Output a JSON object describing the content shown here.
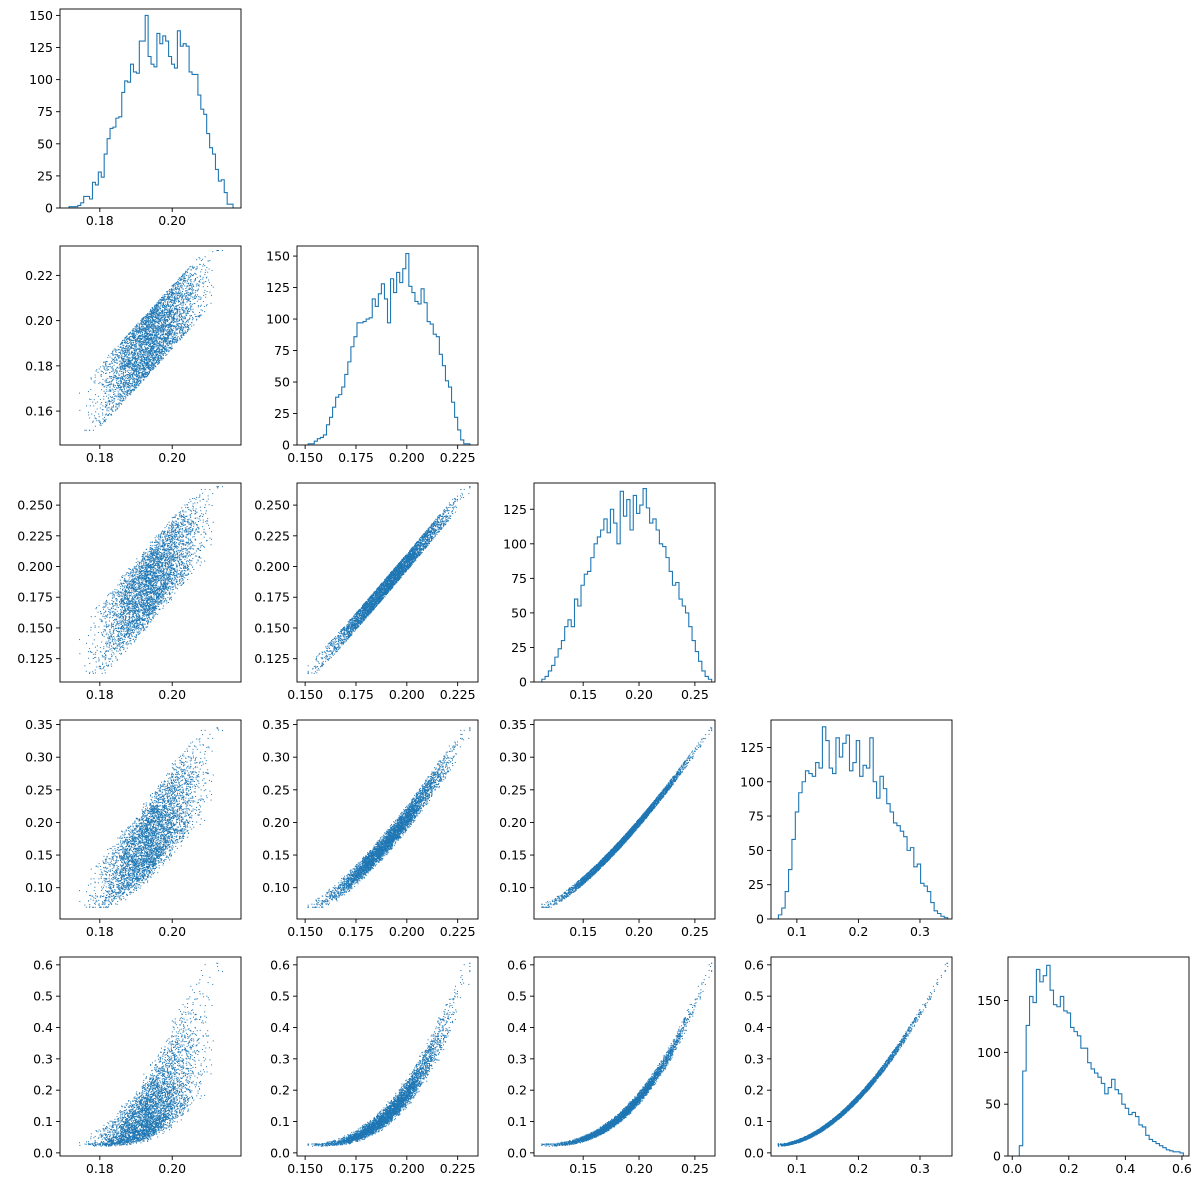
{
  "figure": {
    "layout": "corner-plot",
    "rows": 5,
    "cols": 5,
    "color": "#1f77b4",
    "axis_color": "#000000"
  },
  "chart_data": [
    {
      "panel": "row1-col1",
      "type": "histogram",
      "histtype": "step",
      "xlim": [
        0.169,
        0.219
      ],
      "ylim": [
        0,
        155
      ],
      "xticks": [
        0.18,
        0.2
      ],
      "xtick_labels": [
        "0.18",
        "0.20"
      ],
      "yticks": [
        0,
        25,
        50,
        75,
        100,
        125,
        150
      ],
      "ytick_labels": [
        "0",
        "25",
        "50",
        "75",
        "100",
        "125",
        "150"
      ],
      "bins": {
        "start": 0.1715,
        "end": 0.2168,
        "counts": [
          1,
          1,
          1,
          2,
          4,
          9,
          9,
          7,
          20,
          18,
          28,
          24,
          42,
          54,
          62,
          63,
          70,
          71,
          90,
          99,
          98,
          112,
          106,
          105,
          130,
          130,
          150,
          118,
          112,
          110,
          136,
          128,
          134,
          130,
          118,
          112,
          109,
          138,
          126,
          128,
          126,
          106,
          104,
          104,
          88,
          77,
          73,
          58,
          47,
          42,
          30,
          21,
          22,
          12,
          3,
          3
        ]
      }
    },
    {
      "panel": "row2-col1",
      "type": "scatter",
      "x_param": 1,
      "y_param": 2,
      "xlim": [
        0.169,
        0.219
      ],
      "ylim": [
        0.145,
        0.233
      ],
      "xticks": [
        0.18,
        0.2
      ],
      "xtick_labels": [
        "0.18",
        "0.20"
      ],
      "yticks": [
        0.16,
        0.18,
        0.2,
        0.22
      ],
      "ytick_labels": [
        "0.16",
        "0.18",
        "0.20",
        "0.22"
      ]
    },
    {
      "panel": "row2-col2",
      "type": "histogram",
      "histtype": "step",
      "xlim": [
        0.146,
        0.235
      ],
      "ylim": [
        0,
        158
      ],
      "xticks": [
        0.15,
        0.175,
        0.2,
        0.225
      ],
      "xtick_labels": [
        "0.150",
        "0.175",
        "0.200",
        "0.225"
      ],
      "yticks": [
        0,
        25,
        50,
        75,
        100,
        125,
        150
      ],
      "ytick_labels": [
        "0",
        "25",
        "50",
        "75",
        "100",
        "125",
        "150"
      ],
      "bins": {
        "start": 0.1515,
        "end": 0.231,
        "counts": [
          1,
          1,
          3,
          5,
          6,
          8,
          16,
          22,
          30,
          38,
          40,
          46,
          56,
          66,
          78,
          86,
          97,
          97,
          98,
          100,
          101,
          116,
          110,
          120,
          128,
          116,
          97,
          132,
          121,
          137,
          129,
          140,
          152,
          126,
          121,
          114,
          112,
          124,
          113,
          98,
          96,
          88,
          86,
          72,
          63,
          51,
          46,
          34,
          22,
          12,
          4,
          1,
          1
        ]
      }
    },
    {
      "panel": "row3-col1",
      "type": "scatter",
      "x_param": 1,
      "y_param": 3,
      "xlim": [
        0.169,
        0.219
      ],
      "ylim": [
        0.106,
        0.268
      ],
      "xticks": [
        0.18,
        0.2
      ],
      "xtick_labels": [
        "0.18",
        "0.20"
      ],
      "yticks": [
        0.125,
        0.15,
        0.175,
        0.2,
        0.225,
        0.25
      ],
      "ytick_labels": [
        "0.125",
        "0.150",
        "0.175",
        "0.200",
        "0.225",
        "0.250"
      ]
    },
    {
      "panel": "row3-col2",
      "type": "scatter",
      "x_param": 2,
      "y_param": 3,
      "xlim": [
        0.146,
        0.235
      ],
      "ylim": [
        0.106,
        0.268
      ],
      "xticks": [
        0.15,
        0.175,
        0.2,
        0.225
      ],
      "xtick_labels": [
        "0.150",
        "0.175",
        "0.200",
        "0.225"
      ],
      "yticks": [
        0.125,
        0.15,
        0.175,
        0.2,
        0.225,
        0.25
      ],
      "ytick_labels": [
        "0.125",
        "0.150",
        "0.175",
        "0.200",
        "0.225",
        "0.250"
      ]
    },
    {
      "panel": "row3-col3",
      "type": "histogram",
      "histtype": "step",
      "xlim": [
        0.106,
        0.268
      ],
      "ylim": [
        0,
        144
      ],
      "xticks": [
        0.15,
        0.2,
        0.25
      ],
      "xtick_labels": [
        "0.15",
        "0.20",
        "0.25"
      ],
      "yticks": [
        0,
        25,
        50,
        75,
        100,
        125
      ],
      "ytick_labels": [
        "0",
        "25",
        "50",
        "75",
        "100",
        "125"
      ],
      "bins": {
        "start": 0.113,
        "end": 0.265,
        "counts": [
          2,
          4,
          8,
          12,
          18,
          24,
          30,
          40,
          45,
          40,
          60,
          55,
          70,
          78,
          80,
          90,
          100,
          105,
          110,
          118,
          108,
          125,
          115,
          100,
          138,
          120,
          132,
          110,
          135,
          122,
          128,
          140,
          126,
          115,
          118,
          110,
          100,
          98,
          90,
          80,
          70,
          72,
          60,
          55,
          50,
          40,
          30,
          22,
          15,
          8,
          4,
          2
        ]
      }
    },
    {
      "panel": "row4-col1",
      "type": "scatter",
      "x_param": 1,
      "y_param": 4,
      "xlim": [
        0.169,
        0.219
      ],
      "ylim": [
        0.052,
        0.357
      ],
      "xticks": [
        0.18,
        0.2
      ],
      "xtick_labels": [
        "0.18",
        "0.20"
      ],
      "yticks": [
        0.1,
        0.15,
        0.2,
        0.25,
        0.3,
        0.35
      ],
      "ytick_labels": [
        "0.10",
        "0.15",
        "0.20",
        "0.25",
        "0.30",
        "0.35"
      ]
    },
    {
      "panel": "row4-col2",
      "type": "scatter",
      "x_param": 2,
      "y_param": 4,
      "xlim": [
        0.146,
        0.235
      ],
      "ylim": [
        0.052,
        0.357
      ],
      "xticks": [
        0.15,
        0.175,
        0.2,
        0.225
      ],
      "xtick_labels": [
        "0.150",
        "0.175",
        "0.200",
        "0.225"
      ],
      "yticks": [
        0.1,
        0.15,
        0.2,
        0.25,
        0.3,
        0.35
      ],
      "ytick_labels": [
        "0.10",
        "0.15",
        "0.20",
        "0.25",
        "0.30",
        "0.35"
      ]
    },
    {
      "panel": "row4-col3",
      "type": "scatter",
      "x_param": 3,
      "y_param": 4,
      "xlim": [
        0.106,
        0.268
      ],
      "ylim": [
        0.052,
        0.357
      ],
      "xticks": [
        0.15,
        0.2,
        0.25
      ],
      "xtick_labels": [
        "0.15",
        "0.20",
        "0.25"
      ],
      "yticks": [
        0.1,
        0.15,
        0.2,
        0.25,
        0.3,
        0.35
      ],
      "ytick_labels": [
        "0.10",
        "0.15",
        "0.20",
        "0.25",
        "0.30",
        "0.35"
      ]
    },
    {
      "panel": "row4-col4",
      "type": "histogram",
      "histtype": "step",
      "xlim": [
        0.058,
        0.352
      ],
      "ylim": [
        0,
        145
      ],
      "xticks": [
        0.1,
        0.2,
        0.3
      ],
      "xtick_labels": [
        "0.1",
        "0.2",
        "0.3"
      ],
      "yticks": [
        0,
        25,
        50,
        75,
        100,
        125
      ],
      "ytick_labels": [
        "0",
        "25",
        "50",
        "75",
        "100",
        "125"
      ],
      "bins": {
        "start": 0.07,
        "end": 0.345,
        "counts": [
          3,
          8,
          20,
          36,
          58,
          78,
          92,
          100,
          108,
          106,
          104,
          114,
          110,
          140,
          130,
          110,
          106,
          132,
          118,
          128,
          134,
          108,
          114,
          130,
          104,
          112,
          110,
          132,
          100,
          88,
          104,
          95,
          84,
          78,
          70,
          68,
          64,
          60,
          50,
          52,
          38,
          40,
          26,
          24,
          20,
          12,
          6,
          4,
          2,
          1
        ]
      }
    },
    {
      "panel": "row5-col1",
      "type": "scatter",
      "x_param": 1,
      "y_param": 5,
      "xlim": [
        0.169,
        0.219
      ],
      "ylim": [
        -0.01,
        0.625
      ],
      "xticks": [
        0.18,
        0.2
      ],
      "xtick_labels": [
        "0.18",
        "0.20"
      ],
      "yticks": [
        0.0,
        0.1,
        0.2,
        0.3,
        0.4,
        0.5,
        0.6
      ],
      "ytick_labels": [
        "0.0",
        "0.1",
        "0.2",
        "0.3",
        "0.4",
        "0.5",
        "0.6"
      ]
    },
    {
      "panel": "row5-col2",
      "type": "scatter",
      "x_param": 2,
      "y_param": 5,
      "xlim": [
        0.146,
        0.235
      ],
      "ylim": [
        -0.01,
        0.625
      ],
      "xticks": [
        0.15,
        0.175,
        0.2,
        0.225
      ],
      "xtick_labels": [
        "0.150",
        "0.175",
        "0.200",
        "0.225"
      ],
      "yticks": [
        0.0,
        0.1,
        0.2,
        0.3,
        0.4,
        0.5,
        0.6
      ],
      "ytick_labels": [
        "0.0",
        "0.1",
        "0.2",
        "0.3",
        "0.4",
        "0.5",
        "0.6"
      ]
    },
    {
      "panel": "row5-col3",
      "type": "scatter",
      "x_param": 3,
      "y_param": 5,
      "xlim": [
        0.106,
        0.268
      ],
      "ylim": [
        -0.01,
        0.625
      ],
      "xticks": [
        0.15,
        0.2,
        0.25
      ],
      "xtick_labels": [
        "0.15",
        "0.20",
        "0.25"
      ],
      "yticks": [
        0.0,
        0.1,
        0.2,
        0.3,
        0.4,
        0.5,
        0.6
      ],
      "ytick_labels": [
        "0.0",
        "0.1",
        "0.2",
        "0.3",
        "0.4",
        "0.5",
        "0.6"
      ]
    },
    {
      "panel": "row5-col4",
      "type": "scatter",
      "x_param": 4,
      "y_param": 5,
      "xlim": [
        0.058,
        0.352
      ],
      "ylim": [
        -0.01,
        0.625
      ],
      "xticks": [
        0.1,
        0.2,
        0.3
      ],
      "xtick_labels": [
        "0.1",
        "0.2",
        "0.3"
      ],
      "yticks": [
        0.0,
        0.1,
        0.2,
        0.3,
        0.4,
        0.5,
        0.6
      ],
      "ytick_labels": [
        "0.0",
        "0.1",
        "0.2",
        "0.3",
        "0.4",
        "0.5",
        "0.6"
      ]
    },
    {
      "panel": "row5-col5",
      "type": "histogram",
      "histtype": "step",
      "xlim": [
        -0.015,
        0.625
      ],
      "ylim": [
        0,
        192
      ],
      "xticks": [
        0.0,
        0.2,
        0.4,
        0.6
      ],
      "xtick_labels": [
        "0.0",
        "0.2",
        "0.4",
        "0.6"
      ],
      "yticks": [
        0,
        50,
        100,
        150
      ],
      "ytick_labels": [
        "0",
        "50",
        "100",
        "150"
      ],
      "bins": {
        "start": 0.025,
        "end": 0.605,
        "counts": [
          10,
          82,
          126,
          154,
          148,
          180,
          168,
          174,
          184,
          160,
          146,
          144,
          154,
          140,
          138,
          124,
          120,
          116,
          104,
          104,
          90,
          84,
          80,
          76,
          70,
          60,
          66,
          74,
          64,
          60,
          50,
          46,
          40,
          42,
          38,
          30,
          28,
          20,
          16,
          14,
          12,
          10,
          8,
          6,
          5,
          4,
          4,
          3
        ]
      }
    }
  ]
}
